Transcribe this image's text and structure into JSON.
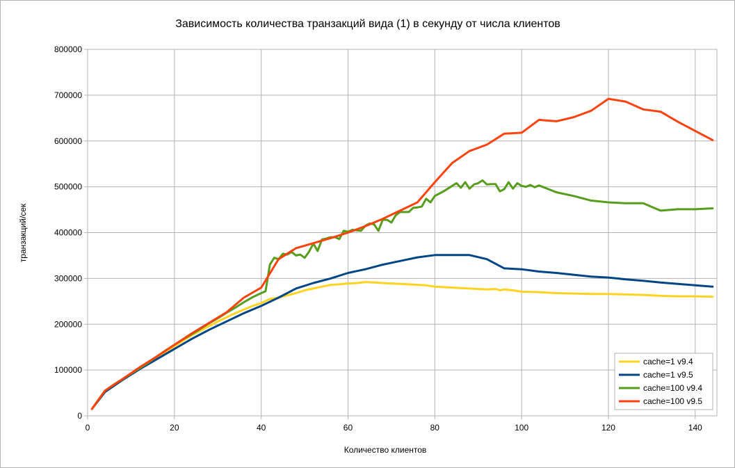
{
  "chart_data": {
    "type": "line",
    "title": "Зависимость количества транзакций вида (1) в секунду от числа клиентов",
    "xlabel": "Количество клиентов",
    "ylabel": "транзакций/сек",
    "xlim": [
      0,
      145
    ],
    "ylim": [
      0,
      800000
    ],
    "x_ticks": [
      0,
      20,
      40,
      60,
      80,
      100,
      120,
      140
    ],
    "y_ticks": [
      0,
      100000,
      200000,
      300000,
      400000,
      500000,
      600000,
      700000,
      800000
    ],
    "grid": true,
    "legend_position": "bottom-right",
    "series": [
      {
        "name": "cache=1 v9.4",
        "color": "#ffd320",
        "points": [
          [
            1,
            15000
          ],
          [
            4,
            55000
          ],
          [
            6,
            68000
          ],
          [
            8,
            80000
          ],
          [
            10,
            92000
          ],
          [
            12,
            104000
          ],
          [
            14,
            116000
          ],
          [
            16,
            128000
          ],
          [
            18,
            140000
          ],
          [
            20,
            152000
          ],
          [
            22,
            164000
          ],
          [
            24,
            176000
          ],
          [
            26,
            186000
          ],
          [
            28,
            196000
          ],
          [
            30,
            206000
          ],
          [
            32,
            215000
          ],
          [
            34,
            224000
          ],
          [
            36,
            232000
          ],
          [
            38,
            240000
          ],
          [
            40,
            246000
          ],
          [
            42,
            255000
          ],
          [
            44,
            258000
          ],
          [
            46,
            263000
          ],
          [
            48,
            268000
          ],
          [
            50,
            274000
          ],
          [
            52,
            278000
          ],
          [
            54,
            282000
          ],
          [
            56,
            286000
          ],
          [
            58,
            287000
          ],
          [
            60,
            289000
          ],
          [
            62,
            290000
          ],
          [
            64,
            292000
          ],
          [
            66,
            291000
          ],
          [
            68,
            290000
          ],
          [
            70,
            289000
          ],
          [
            72,
            288000
          ],
          [
            74,
            287000
          ],
          [
            76,
            286000
          ],
          [
            78,
            285000
          ],
          [
            80,
            282000
          ],
          [
            82,
            281000
          ],
          [
            84,
            280000
          ],
          [
            86,
            279000
          ],
          [
            88,
            278000
          ],
          [
            90,
            277000
          ],
          [
            92,
            276000
          ],
          [
            94,
            277000
          ],
          [
            95,
            274000
          ],
          [
            96,
            276000
          ],
          [
            98,
            274000
          ],
          [
            100,
            271000
          ],
          [
            104,
            270000
          ],
          [
            108,
            268000
          ],
          [
            112,
            267000
          ],
          [
            116,
            266000
          ],
          [
            120,
            266000
          ],
          [
            124,
            265000
          ],
          [
            128,
            264000
          ],
          [
            132,
            262000
          ],
          [
            136,
            261000
          ],
          [
            140,
            261000
          ],
          [
            144,
            260000
          ]
        ]
      },
      {
        "name": "cache=1 v9.5",
        "color": "#004586",
        "points": [
          [
            1,
            15000
          ],
          [
            4,
            52000
          ],
          [
            8,
            78000
          ],
          [
            12,
            102000
          ],
          [
            16,
            124000
          ],
          [
            20,
            146000
          ],
          [
            24,
            168000
          ],
          [
            28,
            188000
          ],
          [
            32,
            206000
          ],
          [
            36,
            224000
          ],
          [
            40,
            240000
          ],
          [
            44,
            258000
          ],
          [
            48,
            278000
          ],
          [
            52,
            290000
          ],
          [
            56,
            300000
          ],
          [
            60,
            312000
          ],
          [
            64,
            320000
          ],
          [
            68,
            330000
          ],
          [
            72,
            338000
          ],
          [
            76,
            346000
          ],
          [
            80,
            351000
          ],
          [
            84,
            351000
          ],
          [
            88,
            351000
          ],
          [
            92,
            342000
          ],
          [
            96,
            322000
          ],
          [
            100,
            320000
          ],
          [
            104,
            315000
          ],
          [
            108,
            312000
          ],
          [
            112,
            308000
          ],
          [
            116,
            304000
          ],
          [
            120,
            302000
          ],
          [
            124,
            298000
          ],
          [
            128,
            295000
          ],
          [
            132,
            291000
          ],
          [
            136,
            288000
          ],
          [
            140,
            285000
          ],
          [
            144,
            282000
          ]
        ]
      },
      {
        "name": "cache=100 v9.4",
        "color": "#579d1c",
        "points": [
          [
            1,
            15000
          ],
          [
            4,
            55000
          ],
          [
            6,
            68000
          ],
          [
            8,
            80000
          ],
          [
            10,
            92000
          ],
          [
            12,
            104000
          ],
          [
            14,
            116000
          ],
          [
            16,
            130000
          ],
          [
            18,
            143000
          ],
          [
            20,
            155000
          ],
          [
            22,
            167000
          ],
          [
            24,
            178000
          ],
          [
            26,
            190000
          ],
          [
            28,
            202000
          ],
          [
            30,
            213000
          ],
          [
            32,
            225000
          ],
          [
            34,
            236000
          ],
          [
            36,
            248000
          ],
          [
            38,
            259000
          ],
          [
            40,
            268000
          ],
          [
            41,
            272000
          ],
          [
            42,
            330000
          ],
          [
            43,
            345000
          ],
          [
            44,
            342000
          ],
          [
            45,
            354000
          ],
          [
            46,
            352000
          ],
          [
            47,
            358000
          ],
          [
            48,
            350000
          ],
          [
            49,
            352000
          ],
          [
            50,
            345000
          ],
          [
            51,
            358000
          ],
          [
            52,
            376000
          ],
          [
            53,
            360000
          ],
          [
            54,
            385000
          ],
          [
            55,
            387000
          ],
          [
            56,
            390000
          ],
          [
            57,
            390000
          ],
          [
            58,
            386000
          ],
          [
            59,
            404000
          ],
          [
            60,
            402000
          ],
          [
            61,
            406000
          ],
          [
            62,
            405000
          ],
          [
            63,
            404000
          ],
          [
            64,
            415000
          ],
          [
            65,
            420000
          ],
          [
            66,
            418000
          ],
          [
            67,
            404000
          ],
          [
            68,
            428000
          ],
          [
            69,
            428000
          ],
          [
            70,
            422000
          ],
          [
            71,
            438000
          ],
          [
            72,
            445000
          ],
          [
            74,
            445000
          ],
          [
            75,
            454000
          ],
          [
            76,
            455000
          ],
          [
            77,
            457000
          ],
          [
            78,
            474000
          ],
          [
            79,
            466000
          ],
          [
            80,
            480000
          ],
          [
            82,
            490000
          ],
          [
            84,
            502000
          ],
          [
            85,
            508000
          ],
          [
            86,
            498000
          ],
          [
            87,
            510000
          ],
          [
            88,
            496000
          ],
          [
            89,
            505000
          ],
          [
            90,
            508000
          ],
          [
            91,
            514000
          ],
          [
            92,
            505000
          ],
          [
            93,
            506000
          ],
          [
            94,
            506000
          ],
          [
            95,
            490000
          ],
          [
            96,
            495000
          ],
          [
            97,
            510000
          ],
          [
            98,
            496000
          ],
          [
            99,
            508000
          ],
          [
            100,
            502000
          ],
          [
            101,
            500000
          ],
          [
            102,
            504000
          ],
          [
            103,
            499000
          ],
          [
            104,
            503000
          ],
          [
            108,
            488000
          ],
          [
            112,
            480000
          ],
          [
            116,
            470000
          ],
          [
            120,
            466000
          ],
          [
            124,
            464000
          ],
          [
            128,
            464000
          ],
          [
            132,
            448000
          ],
          [
            136,
            451000
          ],
          [
            140,
            451000
          ],
          [
            144,
            453000
          ]
        ]
      },
      {
        "name": "cache=100 v9.5",
        "color": "#ff420e",
        "points": [
          [
            1,
            15000
          ],
          [
            4,
            55000
          ],
          [
            8,
            80000
          ],
          [
            12,
            106000
          ],
          [
            16,
            130000
          ],
          [
            20,
            155000
          ],
          [
            24,
            180000
          ],
          [
            28,
            203000
          ],
          [
            32,
            226000
          ],
          [
            36,
            258000
          ],
          [
            40,
            280000
          ],
          [
            44,
            342000
          ],
          [
            48,
            366000
          ],
          [
            52,
            377000
          ],
          [
            56,
            388000
          ],
          [
            60,
            400000
          ],
          [
            64,
            414000
          ],
          [
            68,
            430000
          ],
          [
            72,
            448000
          ],
          [
            76,
            466000
          ],
          [
            80,
            510000
          ],
          [
            84,
            552000
          ],
          [
            88,
            578000
          ],
          [
            92,
            592000
          ],
          [
            96,
            616000
          ],
          [
            100,
            618000
          ],
          [
            104,
            646000
          ],
          [
            108,
            643000
          ],
          [
            112,
            652000
          ],
          [
            116,
            666000
          ],
          [
            120,
            692000
          ],
          [
            124,
            686000
          ],
          [
            128,
            669000
          ],
          [
            132,
            664000
          ],
          [
            136,
            642000
          ],
          [
            140,
            622000
          ],
          [
            144,
            602000
          ]
        ]
      }
    ]
  }
}
